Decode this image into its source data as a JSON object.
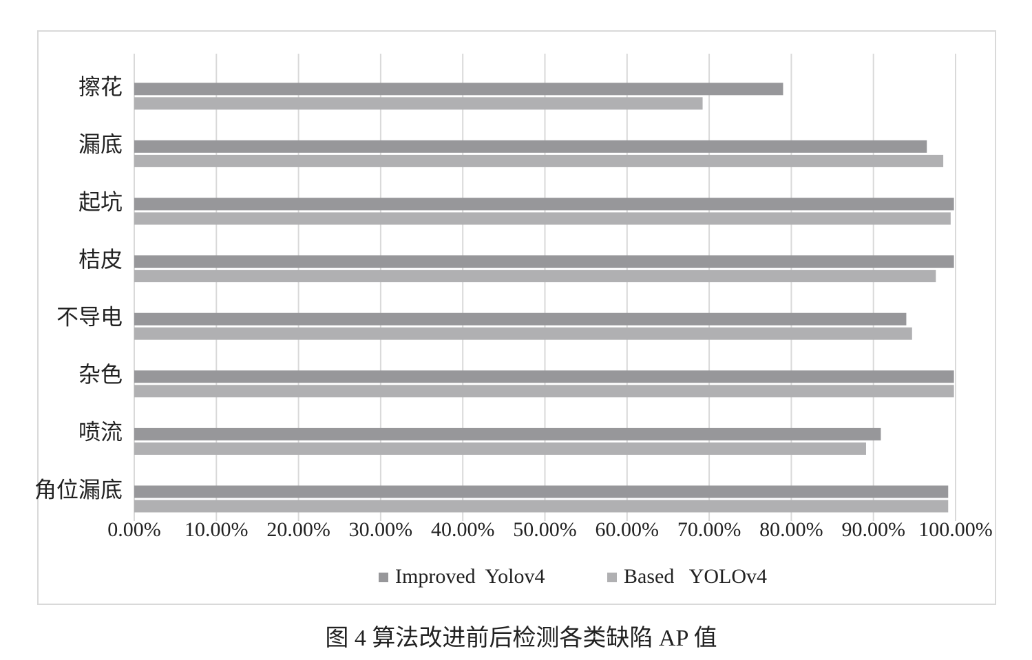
{
  "chart_data": {
    "type": "hbar",
    "categories": [
      "擦花",
      "漏底",
      "起坑",
      "桔皮",
      "不导电",
      "杂色",
      "喷流",
      "角位漏底"
    ],
    "series": [
      {
        "name": "Improved  Yolov4",
        "color": "#97979a",
        "values": [
          79.0,
          96.5,
          99.8,
          99.8,
          94.0,
          99.8,
          90.9,
          99.1
        ]
      },
      {
        "name": "Based   YOLOv4",
        "color": "#b0b0b2",
        "values": [
          69.2,
          98.5,
          99.4,
          97.6,
          94.7,
          99.8,
          89.1,
          99.1
        ]
      }
    ],
    "xlim": [
      0,
      100
    ],
    "xticks": [
      {
        "value": 0,
        "label": "0.00%"
      },
      {
        "value": 10,
        "label": "10.00%"
      },
      {
        "value": 20,
        "label": "20.00%"
      },
      {
        "value": 30,
        "label": "30.00%"
      },
      {
        "value": 40,
        "label": "40.00%"
      },
      {
        "value": 50,
        "label": "50.00%"
      },
      {
        "value": 60,
        "label": "60.00%"
      },
      {
        "value": 70,
        "label": "70.00%"
      },
      {
        "value": 80,
        "label": "80.00%"
      },
      {
        "value": 90,
        "label": "90.00%"
      },
      {
        "value": 100,
        "label": "100.00%"
      }
    ],
    "grid": true,
    "legend": "bottom",
    "caption": "图 4   算法改进前后检测各类缺陷 AP 值"
  }
}
